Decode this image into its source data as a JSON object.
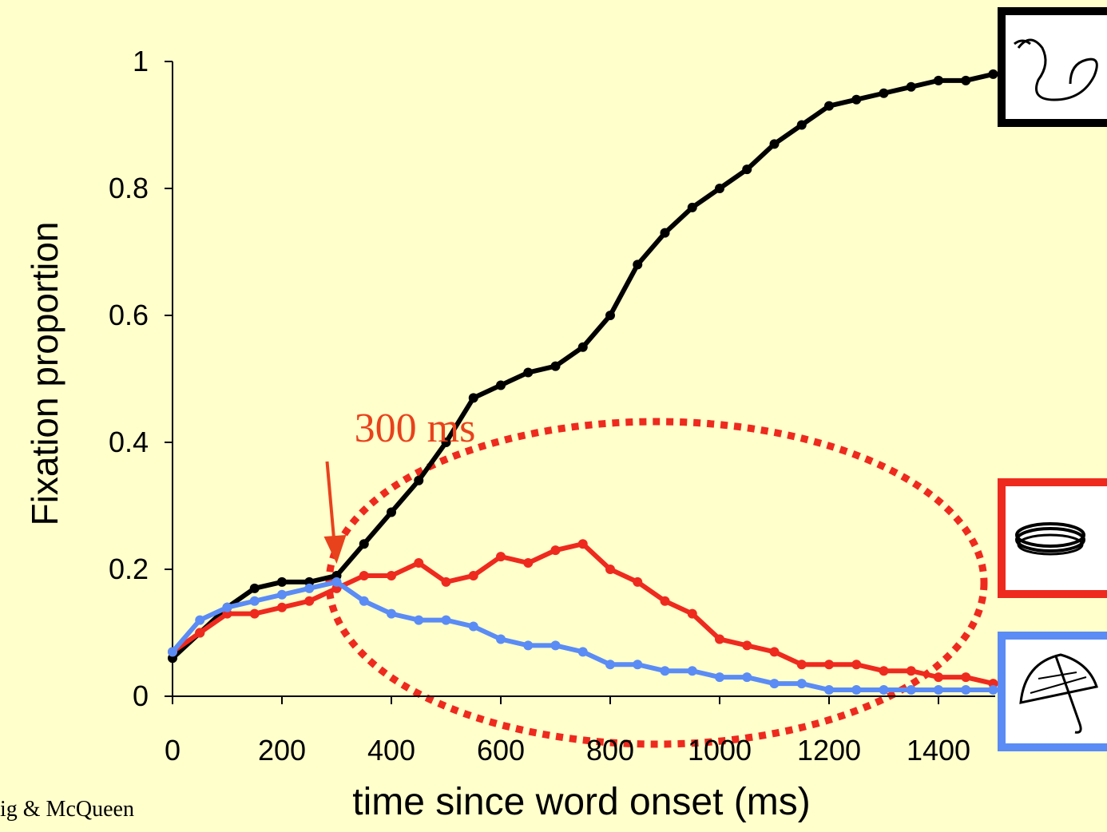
{
  "chart_data": {
    "type": "line",
    "y_label": "Fixation proportion",
    "x_label": "time since word onset (ms)",
    "annotation": "300 ms",
    "annotation_x": 300,
    "credit": "ig & McQueen",
    "x": [
      0,
      50,
      100,
      150,
      200,
      250,
      300,
      350,
      400,
      450,
      500,
      550,
      600,
      650,
      700,
      750,
      800,
      850,
      900,
      950,
      1000,
      1050,
      1100,
      1150,
      1200,
      1250,
      1300,
      1350,
      1400,
      1450,
      1500
    ],
    "series": [
      {
        "color": "#000000",
        "values": [
          0.06,
          0.1,
          0.14,
          0.17,
          0.18,
          0.18,
          0.19,
          0.24,
          0.29,
          0.34,
          0.4,
          0.47,
          0.49,
          0.51,
          0.52,
          0.55,
          0.6,
          0.68,
          0.73,
          0.77,
          0.8,
          0.83,
          0.87,
          0.9,
          0.93,
          0.94,
          0.95,
          0.96,
          0.97,
          0.97,
          0.98
        ]
      },
      {
        "color": "#ee2a1e",
        "values": [
          0.07,
          0.1,
          0.13,
          0.13,
          0.14,
          0.15,
          0.17,
          0.19,
          0.19,
          0.21,
          0.18,
          0.19,
          0.22,
          0.21,
          0.23,
          0.24,
          0.2,
          0.18,
          0.15,
          0.13,
          0.09,
          0.08,
          0.07,
          0.05,
          0.05,
          0.05,
          0.04,
          0.04,
          0.03,
          0.03,
          0.02
        ]
      },
      {
        "color": "#5b8cf5",
        "values": [
          0.07,
          0.12,
          0.14,
          0.15,
          0.16,
          0.17,
          0.18,
          0.15,
          0.13,
          0.12,
          0.12,
          0.11,
          0.09,
          0.08,
          0.08,
          0.07,
          0.05,
          0.05,
          0.04,
          0.04,
          0.03,
          0.03,
          0.02,
          0.02,
          0.01,
          0.01,
          0.01,
          0.01,
          0.01,
          0.01,
          0.01
        ]
      }
    ],
    "xlim": [
      0,
      1500
    ],
    "xticks": [
      0,
      200,
      400,
      600,
      800,
      1000,
      1200,
      1400
    ],
    "ylim": [
      0,
      1
    ],
    "yticks": [
      0,
      0.2,
      0.4,
      0.6,
      0.8,
      1
    ]
  }
}
